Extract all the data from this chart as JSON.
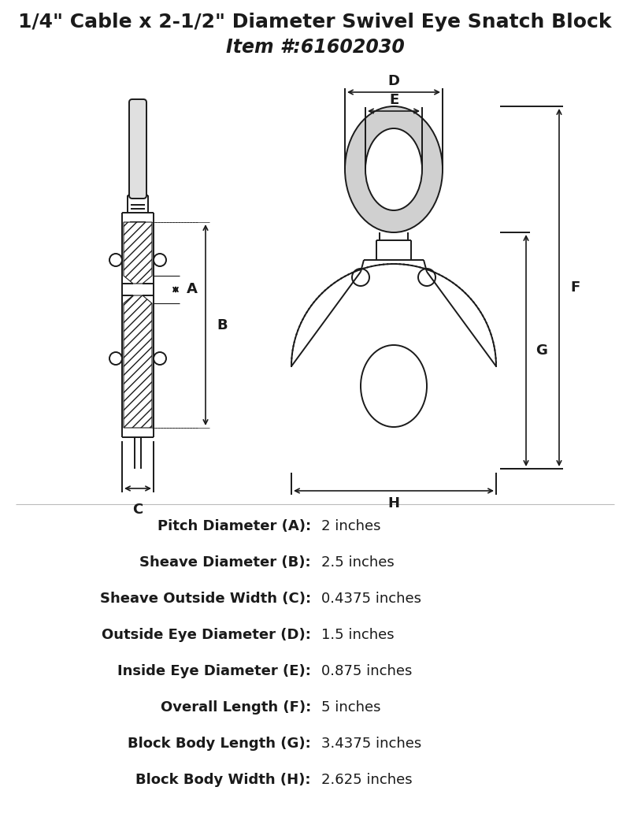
{
  "title_line1": "1/4\" Cable x 2-1/2\" Diameter Swivel Eye Snatch Block",
  "title_line2": "Item #:61602030",
  "bg_color": "#ffffff",
  "line_color": "#1a1a1a",
  "specs": [
    {
      "label": "Pitch Diameter (A):",
      "value": "2 inches"
    },
    {
      "label": "Sheave Diameter (B):",
      "value": "2.5 inches"
    },
    {
      "label": "Sheave Outside Width (C):",
      "value": "0.4375 inches"
    },
    {
      "label": "Outside Eye Diameter (D):",
      "value": "1.5 inches"
    },
    {
      "label": "Inside Eye Diameter (E):",
      "value": "0.875 inches"
    },
    {
      "label": "Overall Length (F):",
      "value": "5 inches"
    },
    {
      "label": "Block Body Length (G):",
      "value": "3.4375 inches"
    },
    {
      "label": "Block Body Width (H):",
      "value": "2.625 inches"
    }
  ],
  "label_fontsize": 13,
  "title_fontsize1": 18,
  "title_fontsize2": 17
}
